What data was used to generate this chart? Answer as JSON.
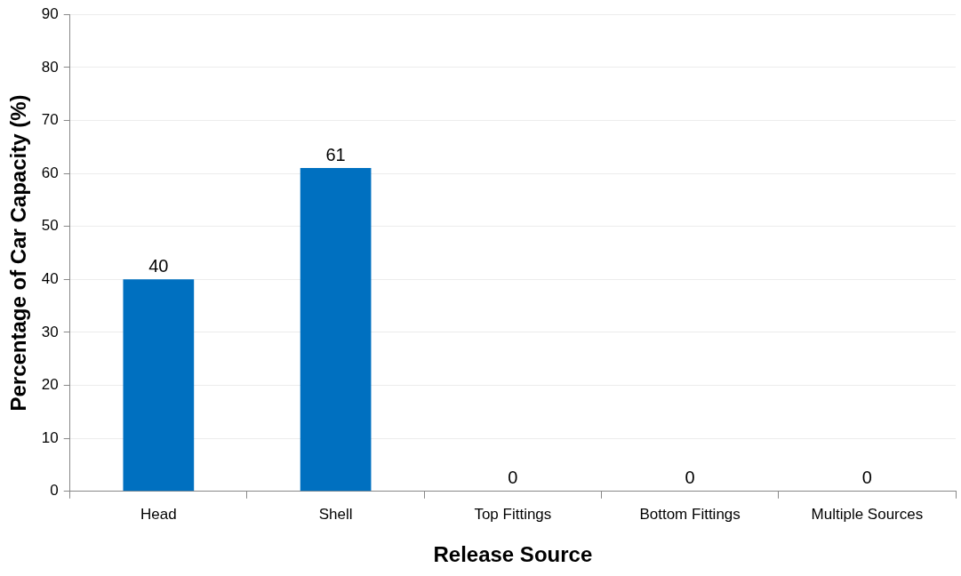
{
  "chart_data": {
    "type": "bar",
    "xlabel": "Release Source",
    "ylabel": "Percentage of Car Capacity (%)",
    "categories": [
      "Head",
      "Shell",
      "Top Fittings",
      "Bottom Fittings",
      "Multiple Sources"
    ],
    "values": [
      40,
      61,
      0,
      0,
      0
    ],
    "color": "#0070c0",
    "ylim": [
      0,
      90
    ],
    "yticks": [
      0,
      10,
      20,
      30,
      40,
      50,
      60,
      70,
      80,
      90
    ],
    "grid": "y",
    "data_labels": true,
    "legend": false
  }
}
